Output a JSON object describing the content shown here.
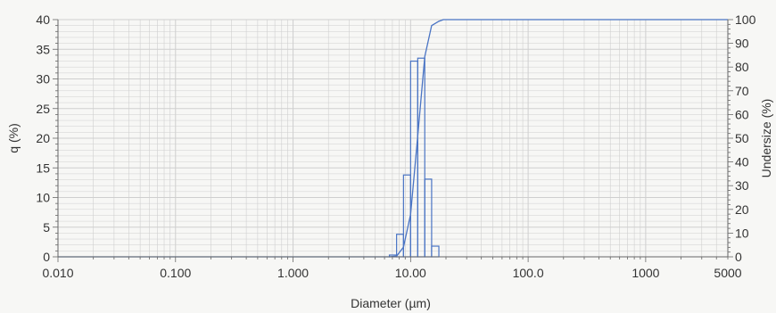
{
  "chart_data": {
    "type": "bar",
    "xlabel": "Diameter (µm)",
    "ylabel_left": "q (%)",
    "ylabel_right": "Undersize (%)",
    "x_scale": "log",
    "xlim": [
      0.01,
      5000
    ],
    "ylim_left": [
      0,
      40
    ],
    "ylim_right": [
      0,
      100
    ],
    "grid": true,
    "x_ticks": [
      {
        "value": 0.01,
        "label": "0.010"
      },
      {
        "value": 0.1,
        "label": "0.100"
      },
      {
        "value": 1,
        "label": "1.000"
      },
      {
        "value": 10,
        "label": "10.00"
      },
      {
        "value": 100,
        "label": "100.0"
      },
      {
        "value": 1000,
        "label": "1000"
      },
      {
        "value": 5000,
        "label": "5000"
      }
    ],
    "y_left_ticks": [
      "0",
      "5",
      "10",
      "15",
      "20",
      "25",
      "30",
      "35",
      "40"
    ],
    "y_right_ticks": [
      "0",
      "10",
      "20",
      "30",
      "40",
      "50",
      "60",
      "70",
      "80",
      "90",
      "100"
    ],
    "series": [
      {
        "kind": "histogram",
        "axis": "left",
        "bins": [
          {
            "x0": 6.6,
            "x1": 7.6,
            "q": 0.3
          },
          {
            "x0": 7.6,
            "x1": 8.7,
            "q": 3.8
          },
          {
            "x0": 8.7,
            "x1": 10.0,
            "q": 13.8
          },
          {
            "x0": 10.0,
            "x1": 11.5,
            "q": 33.0
          },
          {
            "x0": 11.5,
            "x1": 13.2,
            "q": 33.5
          },
          {
            "x0": 13.2,
            "x1": 15.1,
            "q": 13.1
          },
          {
            "x0": 15.1,
            "x1": 17.4,
            "q": 1.8
          }
        ]
      },
      {
        "kind": "cumulative",
        "axis": "right",
        "points": [
          {
            "x": 0.01,
            "y": 0
          },
          {
            "x": 6.6,
            "y": 0
          },
          {
            "x": 7.6,
            "y": 0.3
          },
          {
            "x": 8.7,
            "y": 4.1
          },
          {
            "x": 10.0,
            "y": 17.9
          },
          {
            "x": 11.5,
            "y": 50.9
          },
          {
            "x": 13.2,
            "y": 84.4
          },
          {
            "x": 15.1,
            "y": 97.5
          },
          {
            "x": 17.4,
            "y": 99.3
          },
          {
            "x": 19.0,
            "y": 100
          },
          {
            "x": 5000,
            "y": 100
          }
        ]
      }
    ],
    "colors": {
      "bars": "#4a74c4",
      "curve": "#4a74c4",
      "grid": "#cfcfcf",
      "axis": "#666666"
    }
  }
}
